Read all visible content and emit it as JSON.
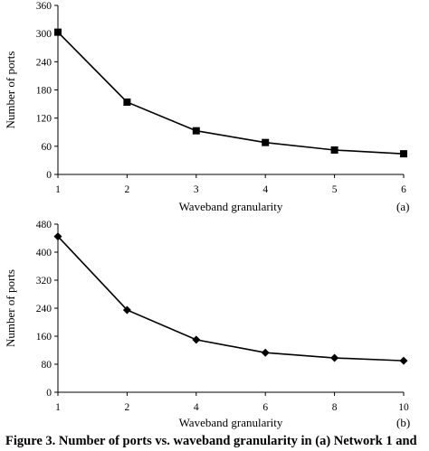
{
  "chart_data": [
    {
      "type": "line",
      "panel_label": "(a)",
      "xlabel": "Waveband granularity",
      "ylabel": "Number of ports",
      "x": [
        1,
        2,
        3,
        4,
        5,
        6
      ],
      "values": [
        303,
        154,
        93,
        68,
        52,
        44
      ],
      "ylim": [
        0,
        360
      ],
      "xlim": [
        1,
        6
      ],
      "yticks": [
        0,
        60,
        120,
        180,
        240,
        300,
        360
      ],
      "xticks": [
        1,
        2,
        3,
        4,
        5,
        6
      ],
      "marker": "square",
      "grid": false,
      "line_color": "#000000"
    },
    {
      "type": "line",
      "panel_label": "(b)",
      "xlabel": "Waveband granularity",
      "ylabel": "Number of ports",
      "x": [
        1,
        2,
        4,
        6,
        8,
        10
      ],
      "values": [
        445,
        235,
        150,
        113,
        98,
        90
      ],
      "ylim": [
        0,
        480
      ],
      "xlim": [
        1,
        10
      ],
      "yticks": [
        0,
        80,
        160,
        240,
        320,
        400,
        480
      ],
      "xticks": [
        1,
        2,
        4,
        6,
        8,
        10
      ],
      "x_categorical": true,
      "marker": "diamond",
      "grid": false,
      "line_color": "#000000"
    }
  ],
  "caption": "Figure 3. Number of ports vs. waveband granularity in (a) Network 1 and"
}
